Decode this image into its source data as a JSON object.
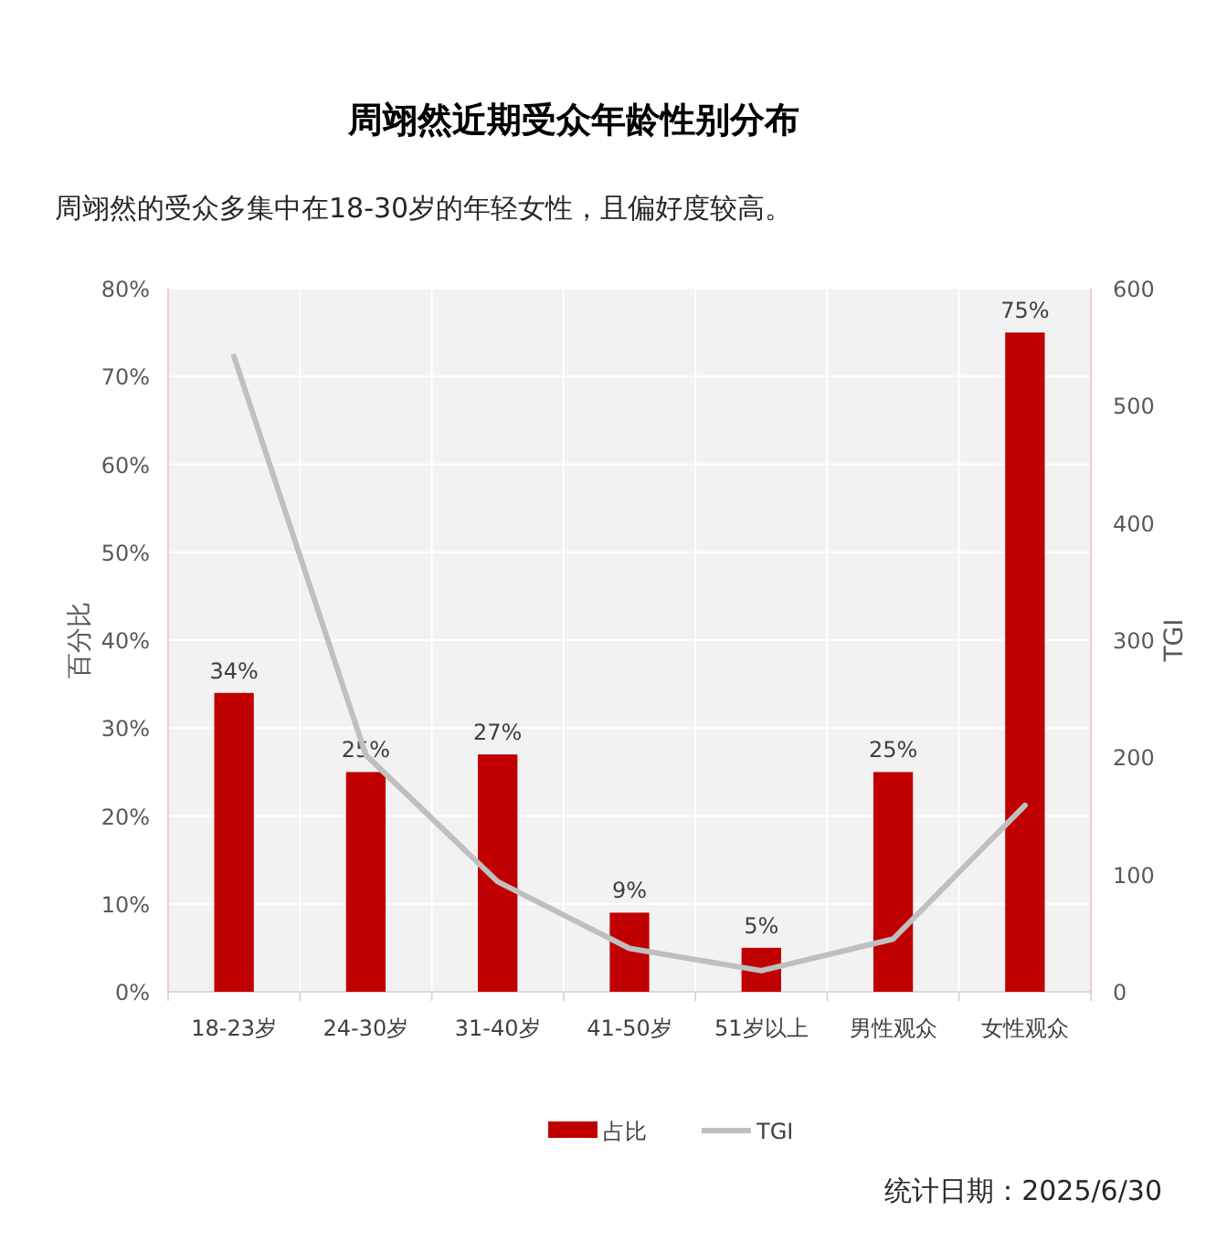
{
  "chart_data": {
    "type": "bar",
    "title": "周翊然近期受众年龄性别分布",
    "subtitle": "周翊然的受众多集中在18-30岁的年轻女性，且偏好度较高。",
    "ylabel": "百分比",
    "y2label": "TGI",
    "categories": [
      "18-23岁",
      "24-30岁",
      "31-40岁",
      "41-50岁",
      "51岁以上",
      "男性观众",
      "女性观众"
    ],
    "series": [
      {
        "name": "占比",
        "color": "#c00000",
        "values": [
          34,
          25,
          27,
          9,
          5,
          25,
          75
        ],
        "value_labels": [
          "34%",
          "25%",
          "27%",
          "9%",
          "5%",
          "25%",
          "75%"
        ]
      },
      {
        "name": "TGI",
        "type": "line",
        "axis": "y2",
        "color": "#bfbfbf",
        "values": [
          542,
          202,
          94,
          37,
          18,
          45,
          159
        ]
      }
    ],
    "ylim": [
      0,
      80
    ],
    "yticks": [
      {
        "value": 0,
        "label": "0%"
      },
      {
        "value": 10,
        "label": "10%"
      },
      {
        "value": 20,
        "label": "20%"
      },
      {
        "value": 30,
        "label": "30%"
      },
      {
        "value": 40,
        "label": "40%"
      },
      {
        "value": 50,
        "label": "50%"
      },
      {
        "value": 60,
        "label": "60%"
      },
      {
        "value": 70,
        "label": "70%"
      },
      {
        "value": 80,
        "label": "80%"
      }
    ],
    "y2lim": [
      0,
      600
    ],
    "y2ticks": [
      0,
      100,
      200,
      300,
      400,
      500,
      600
    ],
    "grid": true,
    "legend": "bottom",
    "annotations": [
      "统计日期：2025/6/30"
    ]
  }
}
